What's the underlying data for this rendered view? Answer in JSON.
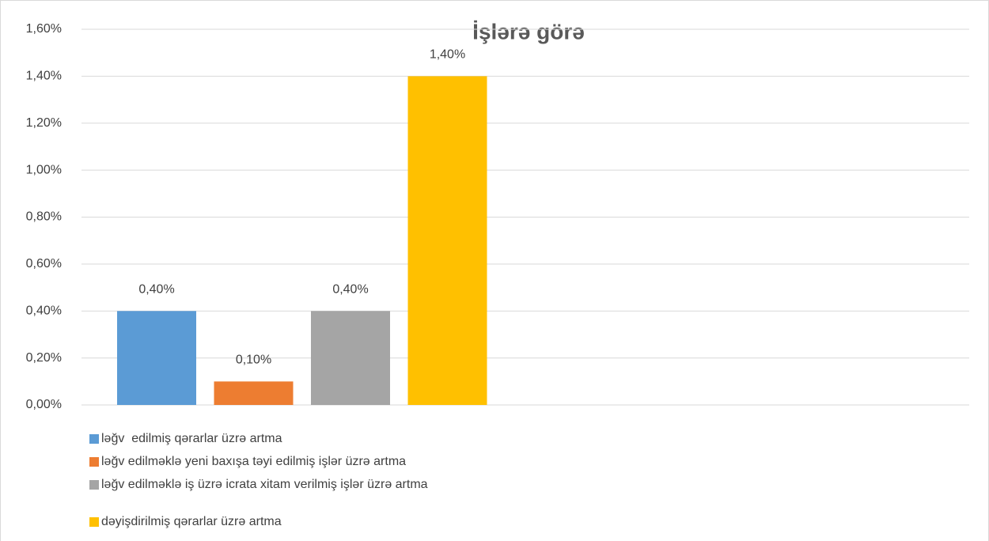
{
  "chart_data": {
    "type": "bar",
    "title": "İşlərə görə",
    "series": [
      {
        "name": "ləğv  edilmiş qərarlar üzrə artma",
        "color": "#5b9bd5",
        "values": [
          0.4
        ],
        "value_labels": [
          "0,40%"
        ]
      },
      {
        "name": "ləğv edilməklə yeni baxışa təyi edilmiş işlər üzrə artma",
        "color": "#ed7d31",
        "values": [
          0.1
        ],
        "value_labels": [
          "0,10%"
        ]
      },
      {
        "name": "ləğv edilməklə iş üzrə icrata xitam verilmiş işlər üzrə artma",
        "color": "#a5a5a5",
        "values": [
          0.4
        ],
        "value_labels": [
          "0,40%"
        ]
      },
      {
        "name": "dəyişdirilmiş qərarlar üzrə artma",
        "color": "#ffc000",
        "values": [
          1.4
        ],
        "value_labels": [
          "1,40%"
        ]
      }
    ],
    "ylim": [
      0,
      1.6
    ],
    "yticks": [
      {
        "value": 0,
        "label": "0,00%"
      },
      {
        "value": 0.2,
        "label": "0,20%"
      },
      {
        "value": 0.4,
        "label": "0,40%"
      },
      {
        "value": 0.6,
        "label": "0,60%"
      },
      {
        "value": 0.8,
        "label": "0,80%"
      },
      {
        "value": 1.0,
        "label": "1,00%"
      },
      {
        "value": 1.2,
        "label": "1,20%"
      },
      {
        "value": 1.4,
        "label": "1,40%"
      },
      {
        "value": 1.6,
        "label": "1,60%"
      }
    ],
    "grid": true,
    "legend": "bottom"
  }
}
